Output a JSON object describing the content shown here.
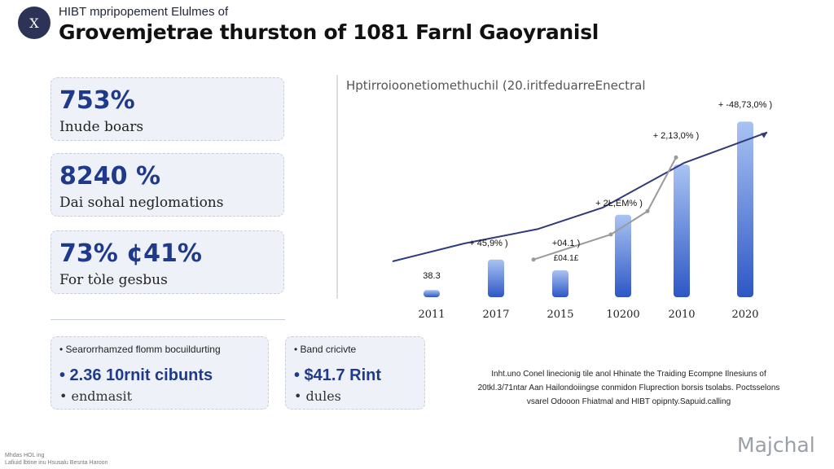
{
  "header": {
    "logo_text": "X",
    "kicker": "HIBT mpripopement Elulmes of",
    "title": "Grovemjetrae thurston of 1081 Farnl Gaoyranisl"
  },
  "stats": [
    {
      "value": "753%",
      "label": "Inude boars"
    },
    {
      "value": "8240 %",
      "label": "Dai sohal neglomations"
    },
    {
      "value": "73% ¢41%",
      "label": "For tòle gesbus"
    }
  ],
  "info_cards": [
    {
      "heading": "• Searorrhamzed flomm bocuildurting",
      "value": "• 2.36 10rnit cibunts",
      "sub": "• endmasit"
    },
    {
      "heading": "• Band cricivte",
      "value": "• $41.7 Rint",
      "sub": "• dules"
    }
  ],
  "chart_data": {
    "type": "bar",
    "title": "Hptirroioonetiomethuchil (20.iritfeduarreEnectral",
    "categories": [
      "2011",
      "2017",
      "2015",
      "10200",
      "2010",
      "2020"
    ],
    "values": [
      4,
      21,
      15,
      46,
      74,
      98
    ],
    "bar_labels": [
      "38.3",
      "+ 45,9% )",
      "+04.1 )",
      "+ 2Ł,EM% )",
      "+ 2,13,0% )",
      "+ -48,73,0% )"
    ],
    "bar_sublabels": [
      "",
      "",
      "£04.1£",
      "",
      "",
      ""
    ],
    "series": [
      {
        "values": [
          20,
          30,
          38,
          50,
          75,
          92
        ]
      },
      {
        "values": [
          null,
          21,
          35,
          48,
          78,
          null
        ]
      }
    ],
    "colors": {
      "bar_top": "#a9c3f2",
      "bar_bottom": "#2e57c6",
      "line_navy": "#2f3a78",
      "line_gray": "#9a9a9a"
    },
    "ylim": [
      0,
      100
    ],
    "grid": false,
    "xlabel": "",
    "ylabel": ""
  },
  "footnote": [
    "Inht.uno Conel linecionig tile anol Hhinate the Traiding Ecompne Ilnesiuns of",
    "20tkl.3/71ntar Aan Hailondoiingse conmidon Fluprection borsis tsolabs. Poctsselons",
    "vsarel Odooon Fhiatmal and HIBT opipnty.Sapuid.calling"
  ],
  "footer_left": [
    "Mhdas HOL ing",
    "Lafiuid lbtine inu Hsusalu Besnta Haroon"
  ],
  "watermark": "Majchal"
}
